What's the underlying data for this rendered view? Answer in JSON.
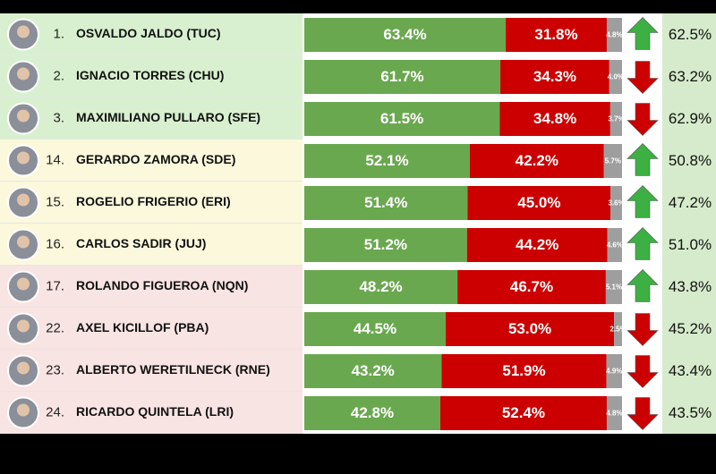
{
  "chart_data": {
    "type": "bar",
    "orientation": "horizontal",
    "stacked": true,
    "xlim": [
      0,
      100
    ],
    "ranks": [
      "1.",
      "2.",
      "3.",
      "14.",
      "15.",
      "16.",
      "17.",
      "22.",
      "23.",
      "24."
    ],
    "categories": [
      "OSVALDO JALDO (TUC)",
      "IGNACIO TORRES (CHU)",
      "MAXIMILIANO PULLARO (SFE)",
      "GERARDO ZAMORA (SDE)",
      "ROGELIO FRIGERIO (ERI)",
      "CARLOS SADIR (JUJ)",
      "ROLANDO FIGUEROA (NQN)",
      "AXEL KICILLOF (PBA)",
      "ALBERTO WERETILNECK (RNE)",
      "RICARDO QUINTELA (LRI)"
    ],
    "series": [
      {
        "color": "#6aa84f",
        "values": [
          63.4,
          61.7,
          61.5,
          52.1,
          51.4,
          51.2,
          48.2,
          44.5,
          43.2,
          42.8
        ],
        "value_labels": [
          "63.4%",
          "61.7%",
          "61.5%",
          "52.1%",
          "51.4%",
          "51.2%",
          "48.2%",
          "44.5%",
          "43.2%",
          "42.8%"
        ]
      },
      {
        "color": "#cc0000",
        "values": [
          31.8,
          34.3,
          34.8,
          42.2,
          45.0,
          44.2,
          46.7,
          53.0,
          51.9,
          52.4
        ],
        "value_labels": [
          "31.8%",
          "34.3%",
          "34.8%",
          "42.2%",
          "45.0%",
          "44.2%",
          "46.7%",
          "53.0%",
          "51.9%",
          "52.4%"
        ]
      },
      {
        "color": "#9e9e9e",
        "values": [
          4.8,
          4.0,
          3.7,
          5.7,
          3.6,
          4.6,
          5.1,
          2.5,
          4.9,
          4.8
        ],
        "value_labels": [
          "4.8%",
          "4.0%",
          "3.7%",
          "5.7%",
          "3.6%",
          "4.6%",
          "5.1%",
          "2.5%",
          "4.9%",
          "4.8%"
        ]
      }
    ],
    "trend": [
      "up",
      "down",
      "down",
      "up",
      "up",
      "up",
      "up",
      "down",
      "down",
      "down"
    ],
    "trend_colors": {
      "up": "#3cb043",
      "down": "#cc0000"
    },
    "previous": [
      "62.5%",
      "63.2%",
      "62.9%",
      "50.8%",
      "47.2%",
      "51.0%",
      "43.8%",
      "45.2%",
      "43.4%",
      "43.5%"
    ]
  }
}
